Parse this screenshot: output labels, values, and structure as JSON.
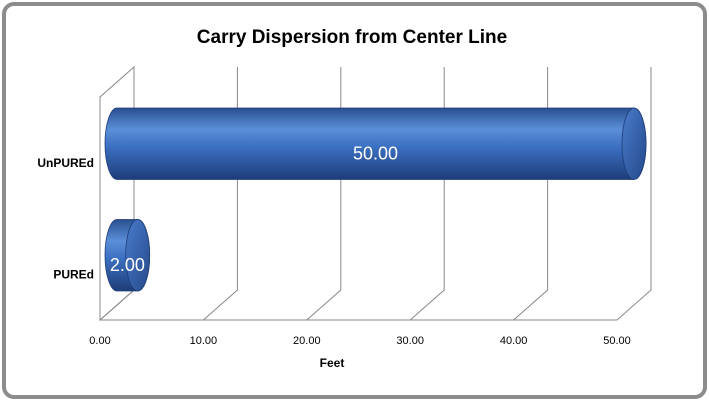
{
  "chart_data": {
    "type": "bar",
    "orientation": "horizontal",
    "style": "3d-cylinder",
    "title": "Carry Dispersion from Center Line",
    "x_label": "Feet",
    "categories": [
      "UnPUREd",
      "PUREd"
    ],
    "values": [
      50,
      2
    ],
    "value_labels": [
      "50.00",
      "2.00"
    ],
    "color": "#3b6fc0",
    "xlim": [
      0,
      50
    ],
    "xticks": [
      {
        "value": 0,
        "label": "0.00"
      },
      {
        "value": 10,
        "label": "10.00"
      },
      {
        "value": 20,
        "label": "20.00"
      },
      {
        "value": 30,
        "label": "30.00"
      },
      {
        "value": 40,
        "label": "40.00"
      },
      {
        "value": 50,
        "label": "50.00"
      }
    ],
    "grid": true
  }
}
